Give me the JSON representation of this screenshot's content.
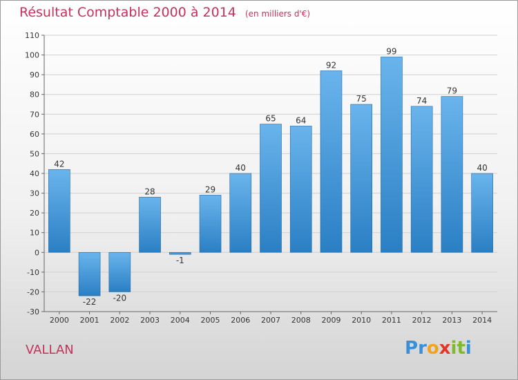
{
  "header": {
    "title": "Résultat Comptable 2000 à 2014",
    "subtitle": "(en milliers d'€)"
  },
  "footer": {
    "place": "VALLAN",
    "brand_letters": [
      "P",
      "r",
      "o",
      "x",
      "i",
      "t",
      "i"
    ],
    "brand_colors": [
      "#3a8fd6",
      "#3a8fd6",
      "#f2a21b",
      "#e5352b",
      "#7dbb2a",
      "#7dbb2a",
      "#3a8fd6"
    ]
  },
  "colors": {
    "bar_light": "#6ab4ec",
    "bar_dark": "#2a7fc4",
    "axis": "#666666",
    "grid": "#d0d0d0",
    "title": "#c8305a"
  },
  "chart_data": {
    "type": "bar",
    "categories": [
      "2000",
      "2001",
      "2002",
      "2003",
      "2004",
      "2005",
      "2006",
      "2007",
      "2008",
      "2009",
      "2010",
      "2011",
      "2012",
      "2013",
      "2014"
    ],
    "values": [
      42,
      -22,
      -20,
      28,
      -1,
      29,
      40,
      65,
      64,
      92,
      75,
      99,
      74,
      79,
      40
    ],
    "data_labels": [
      "42",
      "-22",
      "-20",
      "28",
      "-1",
      "29",
      "40",
      "65",
      "64",
      "92",
      "75",
      "99",
      "74",
      "79",
      "40"
    ],
    "ylim": [
      -30,
      110
    ],
    "yticks": [
      -30,
      -20,
      -10,
      0,
      10,
      20,
      30,
      40,
      50,
      60,
      70,
      80,
      90,
      100,
      110
    ],
    "grid": true,
    "legend": "none"
  }
}
